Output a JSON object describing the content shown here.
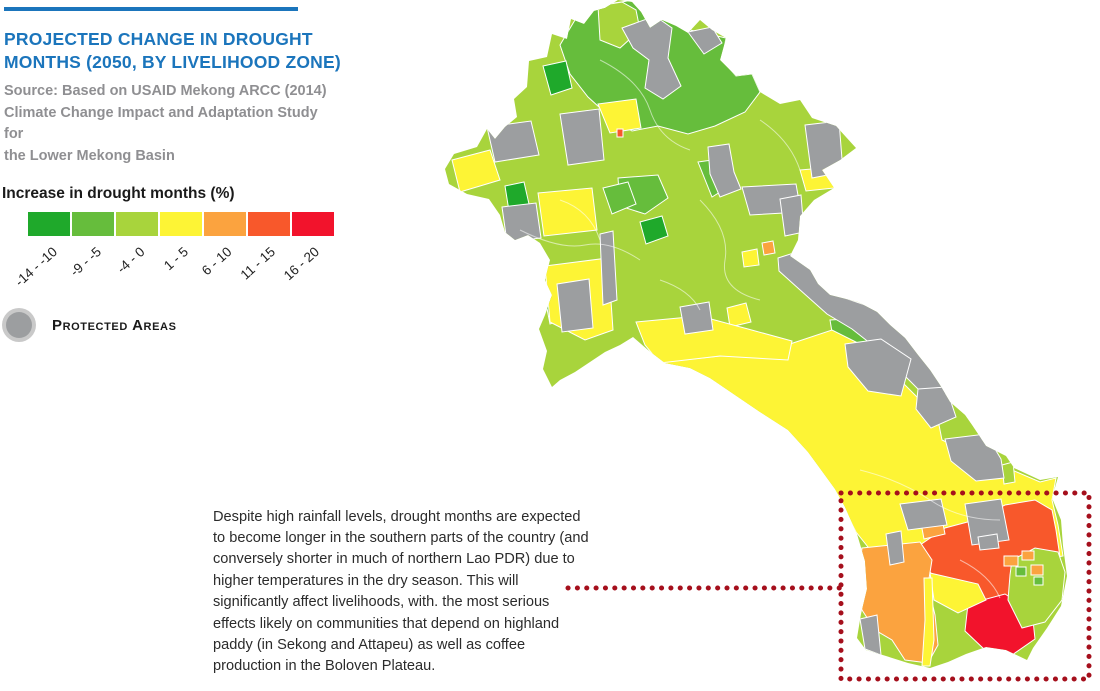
{
  "header": {
    "title": "PROJECTED CHANGE IN DROUGHT\nMONTHS (2050, BY LIVELIHOOD ZONE)",
    "source": "Source: Based on USAID Mekong ARCC (2014)\nClimate Change Impact and Adaptation Study for\nthe Lower Mekong Basin",
    "accent_color": "#1B75BC"
  },
  "legend": {
    "title": "Increase in drought months (%)",
    "bins": [
      {
        "label": "-14 - -10",
        "color": "#1FA92B"
      },
      {
        "label": "-9 - -5",
        "color": "#66BD3C"
      },
      {
        "label": "-4 - 0",
        "color": "#A8D43C"
      },
      {
        "label": "1 - 5",
        "color": "#FDF435"
      },
      {
        "label": "6 - 10",
        "color": "#FBA33F"
      },
      {
        "label": "11 - 15",
        "color": "#F8582B"
      },
      {
        "label": "16 - 20",
        "color": "#F2132C"
      }
    ],
    "protected": {
      "label": "Protected Areas",
      "color": "#9C9EA0"
    }
  },
  "annotation": {
    "text": "Despite high rainfall levels, drought months are expected\nto become longer in the southern parts of the country (and\nconversely shorter in much of northern Lao PDR) due to\nhigher temperatures in the dry season. This will\nsignificantly affect livelihoods, with. the most serious\neffects likely on communities that depend on highland\npaddy (in Sekong and Attapeu) as well as coffee\nproduction in the Boloven Plateau.",
    "highlight_color": "#A50F1C"
  },
  "map": {
    "zone_colors": {
      "dark_green": "#1FA92B",
      "medium_green": "#66BD3C",
      "light_green": "#A8D43C",
      "yellow": "#FDF435",
      "orange": "#FBA33F",
      "orange_red": "#F8582B",
      "red": "#F2132C",
      "protected_gray": "#9C9EA0"
    }
  }
}
